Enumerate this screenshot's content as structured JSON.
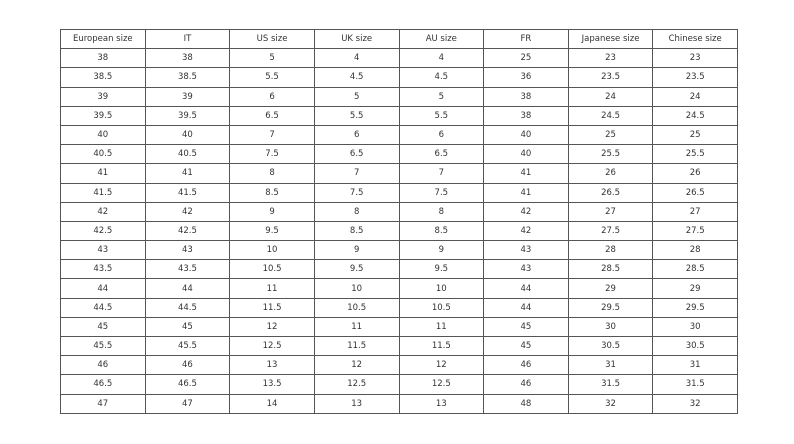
{
  "table": {
    "headers": [
      "European size",
      "IT",
      "US size",
      "UK size",
      "AU size",
      "FR",
      "Japanese size",
      "Chinese size"
    ],
    "rows": [
      [
        "38",
        "38",
        "5",
        "4",
        "4",
        "25",
        "23",
        "23"
      ],
      [
        "38.5",
        "38.5",
        "5.5",
        "4.5",
        "4.5",
        "36",
        "23.5",
        "23.5"
      ],
      [
        "39",
        "39",
        "6",
        "5",
        "5",
        "38",
        "24",
        "24"
      ],
      [
        "39.5",
        "39.5",
        "6.5",
        "5.5",
        "5.5",
        "38",
        "24.5",
        "24.5"
      ],
      [
        "40",
        "40",
        "7",
        "6",
        "6",
        "40",
        "25",
        "25"
      ],
      [
        "40.5",
        "40.5",
        "7.5",
        "6.5",
        "6.5",
        "40",
        "25.5",
        "25.5"
      ],
      [
        "41",
        "41",
        "8",
        "7",
        "7",
        "41",
        "26",
        "26"
      ],
      [
        "41.5",
        "41.5",
        "8.5",
        "7.5",
        "7.5",
        "41",
        "26.5",
        "26.5"
      ],
      [
        "42",
        "42",
        "9",
        "8",
        "8",
        "42",
        "27",
        "27"
      ],
      [
        "42.5",
        "42.5",
        "9.5",
        "8.5",
        "8.5",
        "42",
        "27.5",
        "27.5"
      ],
      [
        "43",
        "43",
        "10",
        "9",
        "9",
        "43",
        "28",
        "28"
      ],
      [
        "43.5",
        "43.5",
        "10.5",
        "9.5",
        "9.5",
        "43",
        "28.5",
        "28.5"
      ],
      [
        "44",
        "44",
        "11",
        "10",
        "10",
        "44",
        "29",
        "29"
      ],
      [
        "44.5",
        "44.5",
        "11.5",
        "10.5",
        "10.5",
        "44",
        "29.5",
        "29.5"
      ],
      [
        "45",
        "45",
        "12",
        "11",
        "11",
        "45",
        "30",
        "30"
      ],
      [
        "45.5",
        "45.5",
        "12.5",
        "11.5",
        "11.5",
        "45",
        "30.5",
        "30.5"
      ],
      [
        "46",
        "46",
        "13",
        "12",
        "12",
        "46",
        "31",
        "31"
      ],
      [
        "46.5",
        "46.5",
        "13.5",
        "12.5",
        "12.5",
        "46",
        "31.5",
        "31.5"
      ],
      [
        "47",
        "47",
        "14",
        "13",
        "13",
        "48",
        "32",
        "32"
      ]
    ]
  }
}
